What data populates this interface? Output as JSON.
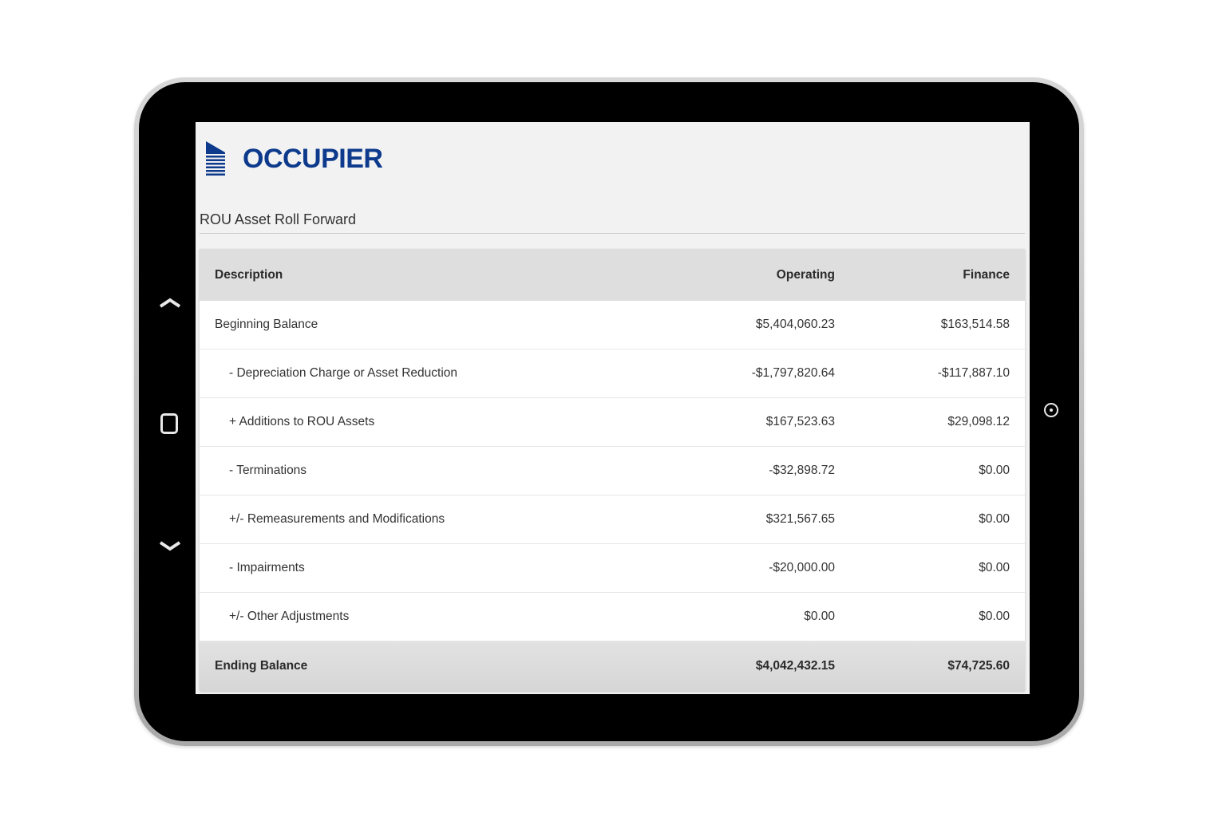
{
  "brand": {
    "name": "OCCUPIER",
    "color": "#0d3a8c"
  },
  "page": {
    "title": "ROU Asset Roll Forward"
  },
  "table": {
    "columns": [
      "Description",
      "Operating",
      "Finance"
    ],
    "rows": [
      {
        "description": "Beginning Balance",
        "operating": "$5,404,060.23",
        "finance": "$163,514.58",
        "indent": false
      },
      {
        "description": "- Depreciation Charge or Asset Reduction",
        "operating": "-$1,797,820.64",
        "finance": "-$117,887.10",
        "indent": true
      },
      {
        "description": "+ Additions to ROU Assets",
        "operating": "$167,523.63",
        "finance": "$29,098.12",
        "indent": true
      },
      {
        "description": "- Terminations",
        "operating": "-$32,898.72",
        "finance": "$0.00",
        "indent": true
      },
      {
        "description": "+/- Remeasurements and Modifications",
        "operating": "$321,567.65",
        "finance": "$0.00",
        "indent": true
      },
      {
        "description": "- Impairments",
        "operating": "-$20,000.00",
        "finance": "$0.00",
        "indent": true
      },
      {
        "description": "+/- Other Adjustments",
        "operating": "$0.00",
        "finance": "$0.00",
        "indent": true
      }
    ],
    "footer": {
      "description": "Ending Balance",
      "operating": "$4,042,432.15",
      "finance": "$74,725.60"
    }
  },
  "device": {
    "buttons": [
      "chevron-up",
      "home",
      "chevron-down",
      "camera"
    ]
  }
}
